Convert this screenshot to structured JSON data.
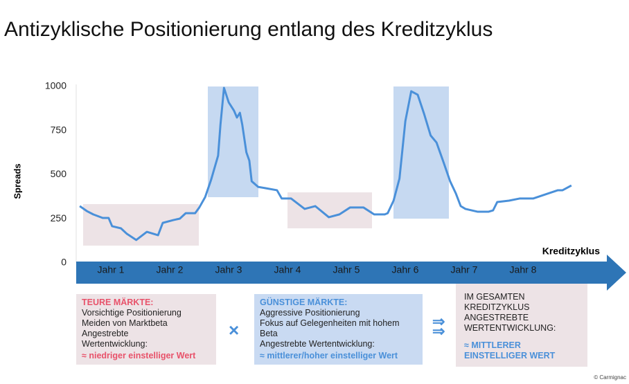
{
  "chart_data": {
    "type": "line",
    "title": "Antizyklische Positionierung entlang des Kreditzyklus",
    "y_label": "Spreads",
    "x_label": "Kreditzyklus",
    "categories": [
      "Jahr 1",
      "Jahr 2",
      "Jahr 3",
      "Jahr 4",
      "Jahr 5",
      "Jahr 6",
      "Jahr 7",
      "Jahr 8"
    ],
    "x": [
      0.06,
      0.18,
      0.29,
      0.45,
      0.55,
      0.61,
      0.76,
      0.86,
      1.02,
      1.2,
      1.39,
      1.47,
      1.65,
      1.76,
      1.86,
      2.02,
      2.09,
      2.19,
      2.29,
      2.41,
      2.45,
      2.51,
      2.59,
      2.68,
      2.73,
      2.78,
      2.82,
      2.89,
      2.94,
      2.98,
      3.09,
      3.41,
      3.49,
      3.65,
      3.88,
      4.06,
      4.29,
      4.47,
      4.65,
      4.88,
      5.06,
      5.24,
      5.29,
      5.39,
      5.49,
      5.59,
      5.69,
      5.8,
      5.91,
      6.02,
      6.12,
      6.24,
      6.35,
      6.45,
      6.53,
      6.61,
      6.82,
      7.0,
      7.08,
      7.15,
      7.35,
      7.53,
      7.76,
      8.0,
      8.18,
      8.26,
      8.41
    ],
    "values": [
      322,
      294,
      275,
      255,
      255,
      208,
      196,
      165,
      130,
      176,
      157,
      227,
      243,
      251,
      282,
      282,
      314,
      373,
      470,
      608,
      784,
      992,
      910,
      863,
      824,
      851,
      784,
      627,
      580,
      463,
      431,
      412,
      365,
      365,
      306,
      322,
      259,
      275,
      314,
      314,
      275,
      275,
      282,
      353,
      478,
      804,
      973,
      953,
      843,
      722,
      682,
      569,
      463,
      392,
      322,
      306,
      290,
      290,
      298,
      345,
      353,
      365,
      365,
      392,
      412,
      412,
      439
    ],
    "color": "#4a90d9",
    "xlim": [
      0,
      8.5
    ],
    "ylim": [
      0,
      1000
    ],
    "yticks": [
      0,
      250,
      500,
      750,
      1000
    ],
    "grid": false
  },
  "boxes": [
    {
      "heading": "TEURE MÄRKTE:",
      "lines": [
        "Vorsichtige Positionierung",
        "Meiden von Marktbeta",
        "Angestrebte",
        "Wertentwicklung:"
      ],
      "highlight": [
        "≈ niedriger einstelliger Wert"
      ]
    },
    {
      "heading": "GÜNSTIGE MÄRKTE:",
      "lines": [
        "Aggressive Positionierung",
        "Fokus auf Gelegenheiten mit hohem",
        "Beta",
        "Angestrebte Wertentwicklung:"
      ],
      "highlight": [
        "≈ mittlerer/hoher einstelliger Wert"
      ]
    },
    {
      "heading": null,
      "lines": [
        "IM GESAMTEN",
        "KREDITZYKLUS",
        "ANGESTREBTE",
        "WERTENTWICKLUNG:"
      ],
      "highlight": [
        "≈ MITTLERER",
        "EINSTELLIGER WERT"
      ]
    }
  ],
  "copyright": "© Carmignac"
}
